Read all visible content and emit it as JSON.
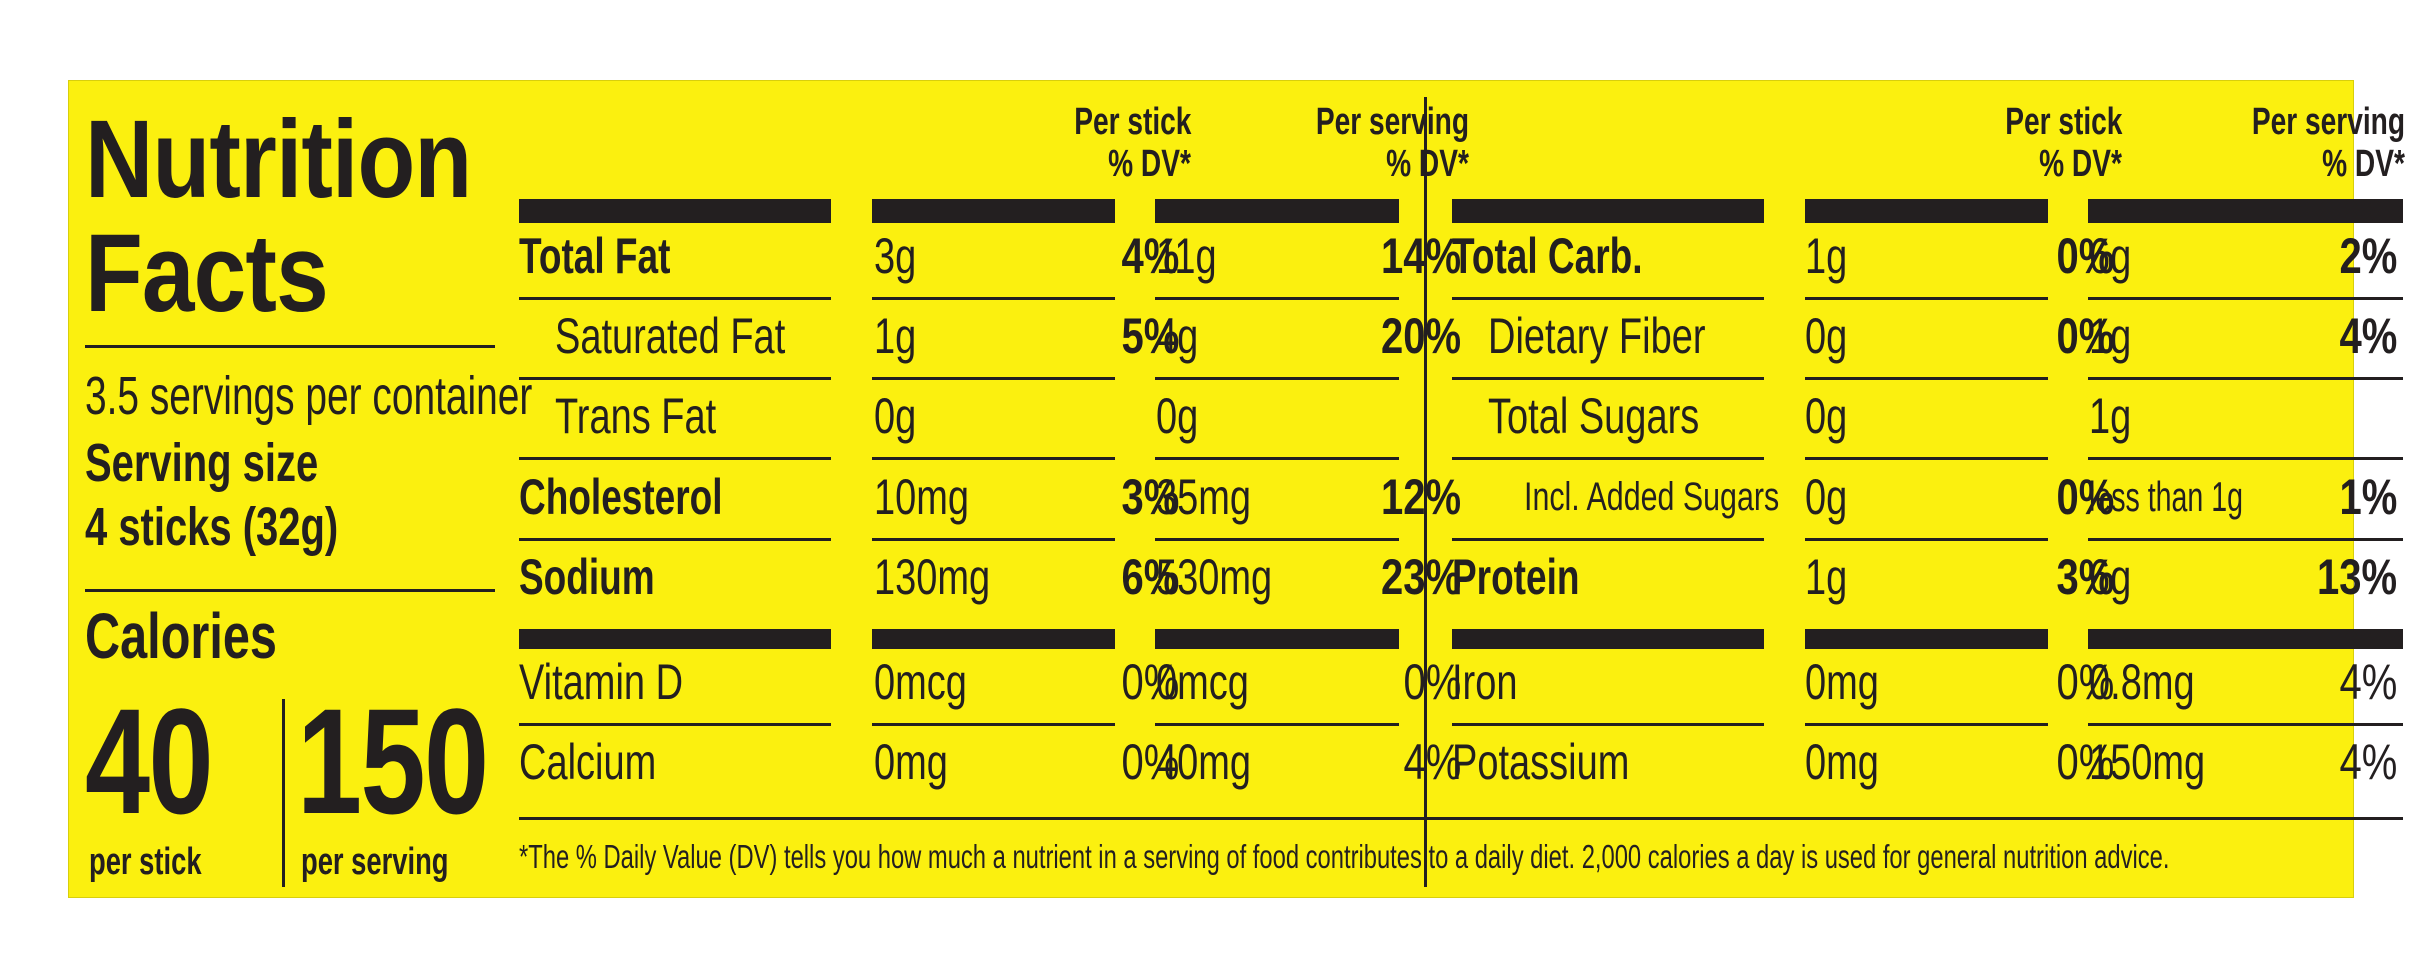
{
  "title": [
    "Nutrition",
    "Facts"
  ],
  "servings_per_container": "3.5 servings per container",
  "serving_size_label": "Serving size",
  "serving_size_value": "4 sticks (32g)",
  "calories_label": "Calories",
  "calories": [
    {
      "value": "40",
      "label": "per stick"
    },
    {
      "value": "150",
      "label": "per serving"
    }
  ],
  "column_headers": {
    "per_stick": "Per stick",
    "per_serving": "Per serving",
    "dv": "% DV*"
  },
  "left_table": [
    {
      "name": "Total Fat",
      "bold": true,
      "indent": 0,
      "stick_amt": "3g",
      "stick_dv": "4%",
      "serv_amt": "11g",
      "serv_dv": "14%"
    },
    {
      "name": "Saturated Fat",
      "bold": false,
      "indent": 1,
      "stick_amt": "1g",
      "stick_dv": "5%",
      "serv_amt": "4g",
      "serv_dv": "20%"
    },
    {
      "name": "Trans Fat",
      "bold": false,
      "indent": 1,
      "stick_amt": "0g",
      "stick_dv": "",
      "serv_amt": "0g",
      "serv_dv": ""
    },
    {
      "name": "Cholesterol",
      "bold": true,
      "indent": 0,
      "stick_amt": "10mg",
      "stick_dv": "3%",
      "serv_amt": "35mg",
      "serv_dv": "12%"
    },
    {
      "name": "Sodium",
      "bold": true,
      "indent": 0,
      "stick_amt": "130mg",
      "stick_dv": "6%",
      "serv_amt": "530mg",
      "serv_dv": "23%"
    },
    {
      "name": "Vitamin D",
      "bold": false,
      "indent": 0,
      "stick_amt": "0mcg",
      "stick_dv": "0%",
      "serv_amt": "0mcg",
      "serv_dv": "0%",
      "plain_dv": true
    },
    {
      "name": "Calcium",
      "bold": false,
      "indent": 0,
      "stick_amt": "0mg",
      "stick_dv": "0%",
      "serv_amt": "40mg",
      "serv_dv": "4%",
      "plain_dv": true
    }
  ],
  "right_table": [
    {
      "name": "Total Carb.",
      "bold": true,
      "indent": 0,
      "stick_amt": "1g",
      "stick_dv": "0%",
      "serv_amt": "6g",
      "serv_dv": "2%"
    },
    {
      "name": "Dietary Fiber",
      "bold": false,
      "indent": 1,
      "stick_amt": "0g",
      "stick_dv": "0%",
      "serv_amt": "1g",
      "serv_dv": "4%"
    },
    {
      "name": "Total Sugars",
      "bold": false,
      "indent": 1,
      "stick_amt": "0g",
      "stick_dv": "",
      "serv_amt": "1g",
      "serv_dv": ""
    },
    {
      "name": "Incl. Added Sugars",
      "bold": false,
      "indent": 2,
      "small": true,
      "stick_amt": "0g",
      "stick_dv": "0%",
      "serv_amt": "less than 1g",
      "serv_dv": "1%",
      "serv_small": true
    },
    {
      "name": "Protein",
      "bold": true,
      "indent": 0,
      "stick_amt": "1g",
      "stick_dv": "3%",
      "serv_amt": "6g",
      "serv_dv": "13%"
    },
    {
      "name": "Iron",
      "bold": false,
      "indent": 0,
      "stick_amt": "0mg",
      "stick_dv": "0%",
      "serv_amt": "0.8mg",
      "serv_dv": "4%",
      "plain_dv": true
    },
    {
      "name": "Potassium",
      "bold": false,
      "indent": 0,
      "stick_amt": "0mg",
      "stick_dv": "0%",
      "serv_amt": "150mg",
      "serv_dv": "4%",
      "plain_dv": true
    }
  ],
  "footnote": "*The % Daily Value (DV) tells you how much a nutrient in a serving of food contributes to a daily diet. 2,000 calories a day is used for general nutrition advice.",
  "colors": {
    "background": "#fbf00f",
    "ink": "#231f20"
  }
}
